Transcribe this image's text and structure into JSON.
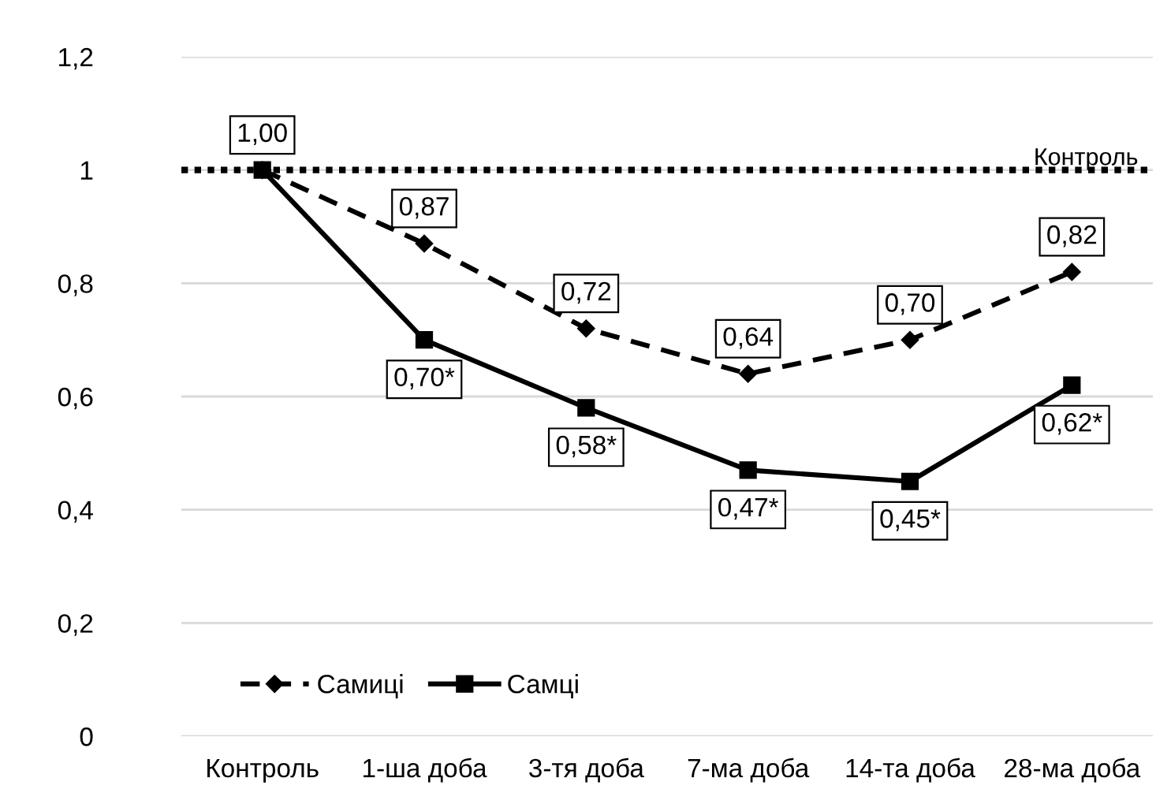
{
  "chart_data": {
    "type": "line",
    "categories": [
      "Контроль",
      "1-ша доба",
      "3-тя доба",
      "7-ма доба",
      "14-та доба",
      "28-ма доба"
    ],
    "series": [
      {
        "name": "Самиці",
        "color": "#000000",
        "marker": "diamond",
        "line_style": "dashed",
        "values": [
          1.0,
          0.87,
          0.72,
          0.64,
          0.7,
          0.82
        ],
        "value_labels": [
          null,
          "0,87",
          "0,72",
          "0,64",
          "0,70",
          "0,82"
        ]
      },
      {
        "name": "Самці",
        "color": "#000000",
        "marker": "square",
        "line_style": "solid",
        "values": [
          1.0,
          0.7,
          0.58,
          0.47,
          0.45,
          0.62
        ],
        "value_labels": [
          "1,00",
          "0,70*",
          "0,58*",
          "0,47*",
          "0,45*",
          "0,62*"
        ]
      }
    ],
    "ylim": [
      0,
      1.2
    ],
    "yticks": [
      0,
      {
        "value": 0.2,
        "label": "0,2"
      },
      {
        "value": 0.4,
        "label": "0,4"
      },
      {
        "value": 0.6,
        "label": "0,6"
      },
      {
        "value": 0.8,
        "label": "0,8"
      },
      1,
      {
        "value": 1.2,
        "label": "1,2"
      }
    ],
    "ref_lines": [
      {
        "axis": "y",
        "value": 1,
        "label": "Контроль",
        "color": "#000000",
        "line_style": "dotted"
      }
    ],
    "grid": "y",
    "legend": "bottom left"
  }
}
